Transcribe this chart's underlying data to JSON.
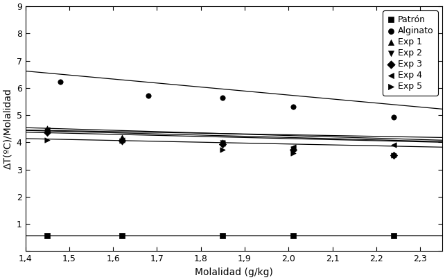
{
  "xlabel": "Molalidad (g/kg)",
  "ylabel": "ΔT(ºC)/Molalidad",
  "xlim": [
    1.4,
    2.35
  ],
  "ylim": [
    0,
    9
  ],
  "yticks": [
    0,
    1,
    2,
    3,
    4,
    5,
    6,
    7,
    8,
    9
  ],
  "xticks": [
    1.4,
    1.5,
    1.6,
    1.7,
    1.8,
    1.9,
    2.0,
    2.1,
    2.2,
    2.3
  ],
  "xtick_labels": [
    "1,4",
    "1,5",
    "1,6",
    "1,7",
    "1,8",
    "1,9",
    "2,0",
    "2,1",
    "2,2",
    "2,3"
  ],
  "series": {
    "Patrón": {
      "x": [
        1.45,
        1.62,
        1.85,
        2.01,
        2.24
      ],
      "y": [
        0.57,
        0.57,
        0.57,
        0.57,
        0.58
      ],
      "marker": "s",
      "line_slope": 0.003,
      "line_intercept": 0.565
    },
    "Alginato": {
      "x": [
        1.48,
        1.68,
        1.85,
        2.01,
        2.24
      ],
      "y": [
        6.22,
        5.73,
        5.65,
        5.3,
        4.92
      ],
      "marker": "o",
      "line_slope": -1.47,
      "line_intercept": 8.68
    },
    "Exp 1": {
      "x": [
        1.45,
        1.62,
        1.85,
        2.01,
        2.24
      ],
      "y": [
        4.53,
        4.18,
        4.02,
        3.78,
        3.55
      ],
      "marker": "^",
      "line_slope": -0.485,
      "line_intercept": 5.22
    },
    "Exp 2": {
      "x": [
        1.45,
        1.62,
        1.85,
        2.01,
        2.24
      ],
      "y": [
        4.42,
        4.02,
        3.98,
        3.75,
        3.5
      ],
      "marker": "v",
      "line_slope": -0.435,
      "line_intercept": 5.05
    },
    "Exp 3": {
      "x": [
        1.45,
        1.62,
        1.85,
        2.01,
        2.24
      ],
      "y": [
        4.37,
        4.05,
        3.93,
        3.72,
        3.53
      ],
      "marker": "D",
      "line_slope": -0.39,
      "line_intercept": 4.92
    },
    "Exp 4": {
      "x": [
        1.45,
        1.62,
        1.85,
        2.01,
        2.24
      ],
      "y": [
        4.48,
        4.08,
        3.95,
        3.82,
        3.91
      ],
      "marker": "<",
      "line_slope": -0.29,
      "line_intercept": 4.86
    },
    "Exp 5": {
      "x": [
        1.45,
        1.62,
        1.85,
        2.01,
        2.24
      ],
      "y": [
        4.08,
        4.05,
        3.72,
        3.6,
        3.52
      ],
      "marker": ">",
      "line_slope": -0.33,
      "line_intercept": 4.6
    }
  }
}
